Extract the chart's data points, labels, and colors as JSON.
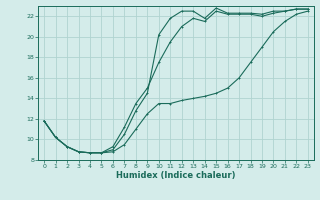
{
  "xlabel": "Humidex (Indice chaleur)",
  "background_color": "#d4ecea",
  "grid_color": "#b0d4d0",
  "line_color": "#1a6b5a",
  "xlim": [
    -0.5,
    23.5
  ],
  "ylim": [
    8,
    23
  ],
  "xticks": [
    0,
    1,
    2,
    3,
    4,
    5,
    6,
    7,
    8,
    9,
    10,
    11,
    12,
    13,
    14,
    15,
    16,
    17,
    18,
    19,
    20,
    21,
    22,
    23
  ],
  "yticks": [
    8,
    10,
    12,
    14,
    16,
    18,
    20,
    22
  ],
  "line_min_x": [
    0,
    1,
    2,
    3,
    4,
    5,
    6,
    7,
    8,
    9,
    10,
    11,
    12,
    13,
    14,
    15,
    16,
    17,
    18,
    19,
    20,
    21,
    22,
    23
  ],
  "line_min_y": [
    11.8,
    10.2,
    9.3,
    8.8,
    8.7,
    8.7,
    8.8,
    9.5,
    11.0,
    12.5,
    13.5,
    13.5,
    13.8,
    14.0,
    14.2,
    14.5,
    15.0,
    16.0,
    17.5,
    19.0,
    20.5,
    21.5,
    22.2,
    22.5
  ],
  "line_mean_x": [
    0,
    1,
    2,
    3,
    4,
    5,
    6,
    7,
    8,
    9,
    10,
    11,
    12,
    13,
    14,
    15,
    16,
    17,
    18,
    19,
    20,
    21,
    22,
    23
  ],
  "line_mean_y": [
    11.8,
    10.2,
    9.3,
    8.8,
    8.7,
    8.7,
    9.3,
    11.2,
    13.5,
    15.0,
    17.5,
    19.5,
    21.0,
    21.8,
    21.5,
    22.5,
    22.2,
    22.2,
    22.2,
    22.0,
    22.3,
    22.5,
    22.7,
    22.7
  ],
  "line_max_x": [
    0,
    1,
    2,
    3,
    4,
    5,
    6,
    7,
    8,
    9,
    10,
    11,
    12,
    13,
    14,
    15,
    16,
    17,
    18,
    19,
    20,
    21,
    22,
    23
  ],
  "line_max_y": [
    11.8,
    10.2,
    9.3,
    8.8,
    8.7,
    8.7,
    9.0,
    10.5,
    12.8,
    14.5,
    20.2,
    21.8,
    22.5,
    22.5,
    21.8,
    22.8,
    22.3,
    22.3,
    22.3,
    22.2,
    22.5,
    22.5,
    22.7,
    22.7
  ]
}
